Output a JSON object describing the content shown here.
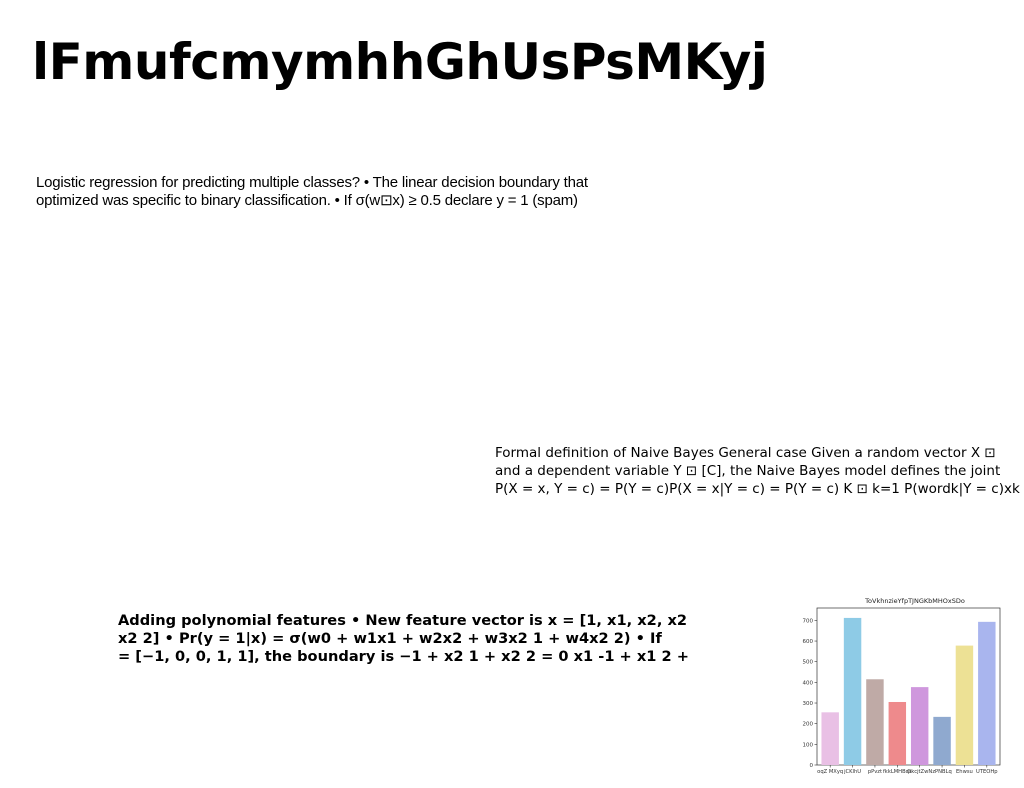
{
  "slide": {
    "title": "lFmufcmymhhGhUsPsMKyj",
    "paragraph_1": "Logistic regression for predicting multiple classes? • The linear decision boundary that\noptimized was specific to binary classification. • If σ(w⊡x) ≥ 0.5 declare y = 1 (spam)",
    "paragraph_2": "Formal definition of Naive Bayes General case Given a random vector X ⊡\nand a dependent variable Y ⊡ [C], the Naive Bayes model defines the joint\nP(X = x, Y = c) = P(Y = c)P(X = x|Y = c) = P(Y = c) K ⊡ k=1 P(wordk|Y = c)xk",
    "paragraph_3": "Adding polynomial features • New feature vector is x = [1, x1, x2, x2\nx2 2] • Pr(y = 1|x) = σ(w0 + w1x1 + w2x2 + w3x2 1 + w4x2 2) • If\n= [−1, 0, 0, 1, 1], the boundary is −1 + x2 1 + x2 2 = 0 x1 -1 + x1 2 +"
  },
  "chart_data": {
    "type": "bar",
    "title": "ToVkhnzieYfpTJNGKbMHOxSDo",
    "categories": [
      "oqZ MXyq",
      "jCKlhU",
      "pPvzt",
      "fkkLMHBqs",
      "OkcjtZwN",
      "zPNBLq",
      "Ehwsu",
      "UTEOHp"
    ],
    "values": [
      255,
      712,
      415,
      305,
      377,
      233,
      578,
      693
    ],
    "colors": [
      "#e9c0e5",
      "#8ecbe6",
      "#bfaaa6",
      "#ee8a8c",
      "#cf97dd",
      "#8fa9cf",
      "#ede195",
      "#a9b5ee"
    ],
    "ylim": [
      0,
      760
    ],
    "yticks": [
      0,
      100,
      200,
      300,
      400,
      500,
      600,
      700
    ],
    "xlabel": "",
    "ylabel": "",
    "grid": false
  }
}
